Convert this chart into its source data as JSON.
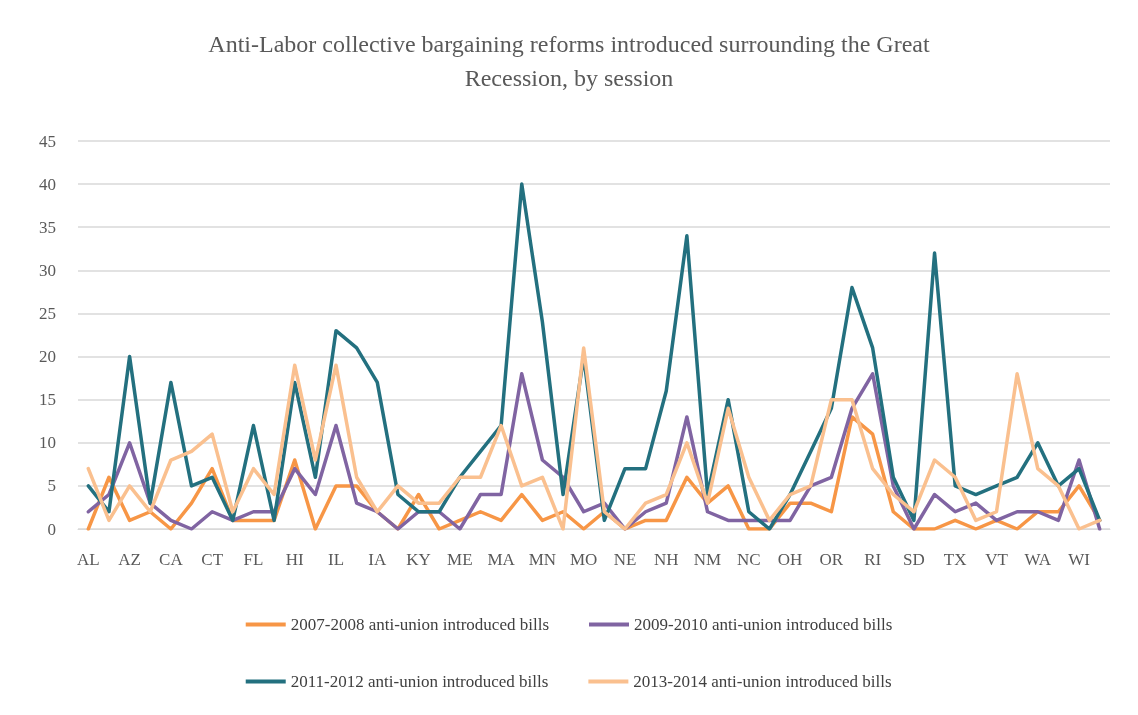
{
  "chart_data": {
    "type": "line",
    "title": "Anti-Labor collective bargaining reforms introduced surrounding the Great\nRecession, by session",
    "categories": [
      "AL",
      null,
      "AZ",
      null,
      "CA",
      null,
      "CT",
      null,
      "FL",
      null,
      "HI",
      null,
      "IL",
      null,
      "IA",
      null,
      "KY",
      null,
      "ME",
      null,
      "MA",
      null,
      "MN",
      null,
      "MO",
      null,
      "NE",
      null,
      "NH",
      null,
      "NM",
      null,
      "NC",
      null,
      "OH",
      null,
      "OR",
      null,
      "RI",
      null,
      "SD",
      null,
      "TX",
      null,
      "VT",
      null,
      "WA",
      null,
      "WI",
      null
    ],
    "series": [
      {
        "name": "2007-2008 anti-union introduced bills",
        "color": "#f79646",
        "values": [
          0,
          6,
          1,
          2,
          0,
          3,
          7,
          1,
          1,
          1,
          8,
          0,
          5,
          5,
          2,
          0,
          4,
          0,
          1,
          2,
          1,
          4,
          1,
          2,
          0,
          2,
          0,
          1,
          1,
          6,
          3,
          5,
          0,
          0,
          3,
          3,
          2,
          13,
          11,
          2,
          0,
          0,
          1,
          0,
          1,
          0,
          2,
          2,
          5,
          1
        ]
      },
      {
        "name": "2009-2010 anti-union introduced bills",
        "color": "#8064a2",
        "values": [
          2,
          4,
          10,
          3,
          1,
          0,
          2,
          1,
          2,
          2,
          7,
          4,
          12,
          3,
          2,
          0,
          2,
          2,
          0,
          4,
          4,
          18,
          8,
          6,
          2,
          3,
          0,
          2,
          3,
          13,
          2,
          1,
          1,
          1,
          1,
          5,
          6,
          14,
          18,
          5,
          0,
          4,
          2,
          3,
          1,
          2,
          2,
          1,
          8,
          0
        ]
      },
      {
        "name": "2011-2012 anti-union introduced bills",
        "color": "#23707f",
        "values": [
          5,
          2,
          20,
          3,
          17,
          5,
          6,
          1,
          12,
          1,
          17,
          6,
          23,
          21,
          17,
          4,
          2,
          2,
          6,
          9,
          12,
          40,
          24,
          4,
          20,
          1,
          7,
          7,
          16,
          34,
          4,
          15,
          2,
          0,
          4,
          9,
          14,
          28,
          21,
          6,
          1,
          32,
          5,
          4,
          5,
          6,
          10,
          5,
          7,
          1
        ]
      },
      {
        "name": "2013-2014 anti-union introduced bills",
        "color": "#fac08f",
        "values": [
          7,
          1,
          5,
          2,
          8,
          9,
          11,
          2,
          7,
          4,
          19,
          8,
          19,
          6,
          2,
          5,
          3,
          3,
          6,
          6,
          12,
          5,
          6,
          0,
          21,
          2,
          0,
          3,
          4,
          10,
          3,
          14,
          6,
          1,
          4,
          5,
          15,
          15,
          7,
          4,
          2,
          8,
          6,
          1,
          2,
          18,
          7,
          5,
          0,
          1
        ]
      }
    ],
    "ylim": [
      0,
      45
    ],
    "yticks": [
      0,
      5,
      10,
      15,
      20,
      25,
      30,
      35,
      40,
      45
    ],
    "grid": "y",
    "legend": "bottom",
    "marker": "none",
    "line_style": "solid"
  }
}
